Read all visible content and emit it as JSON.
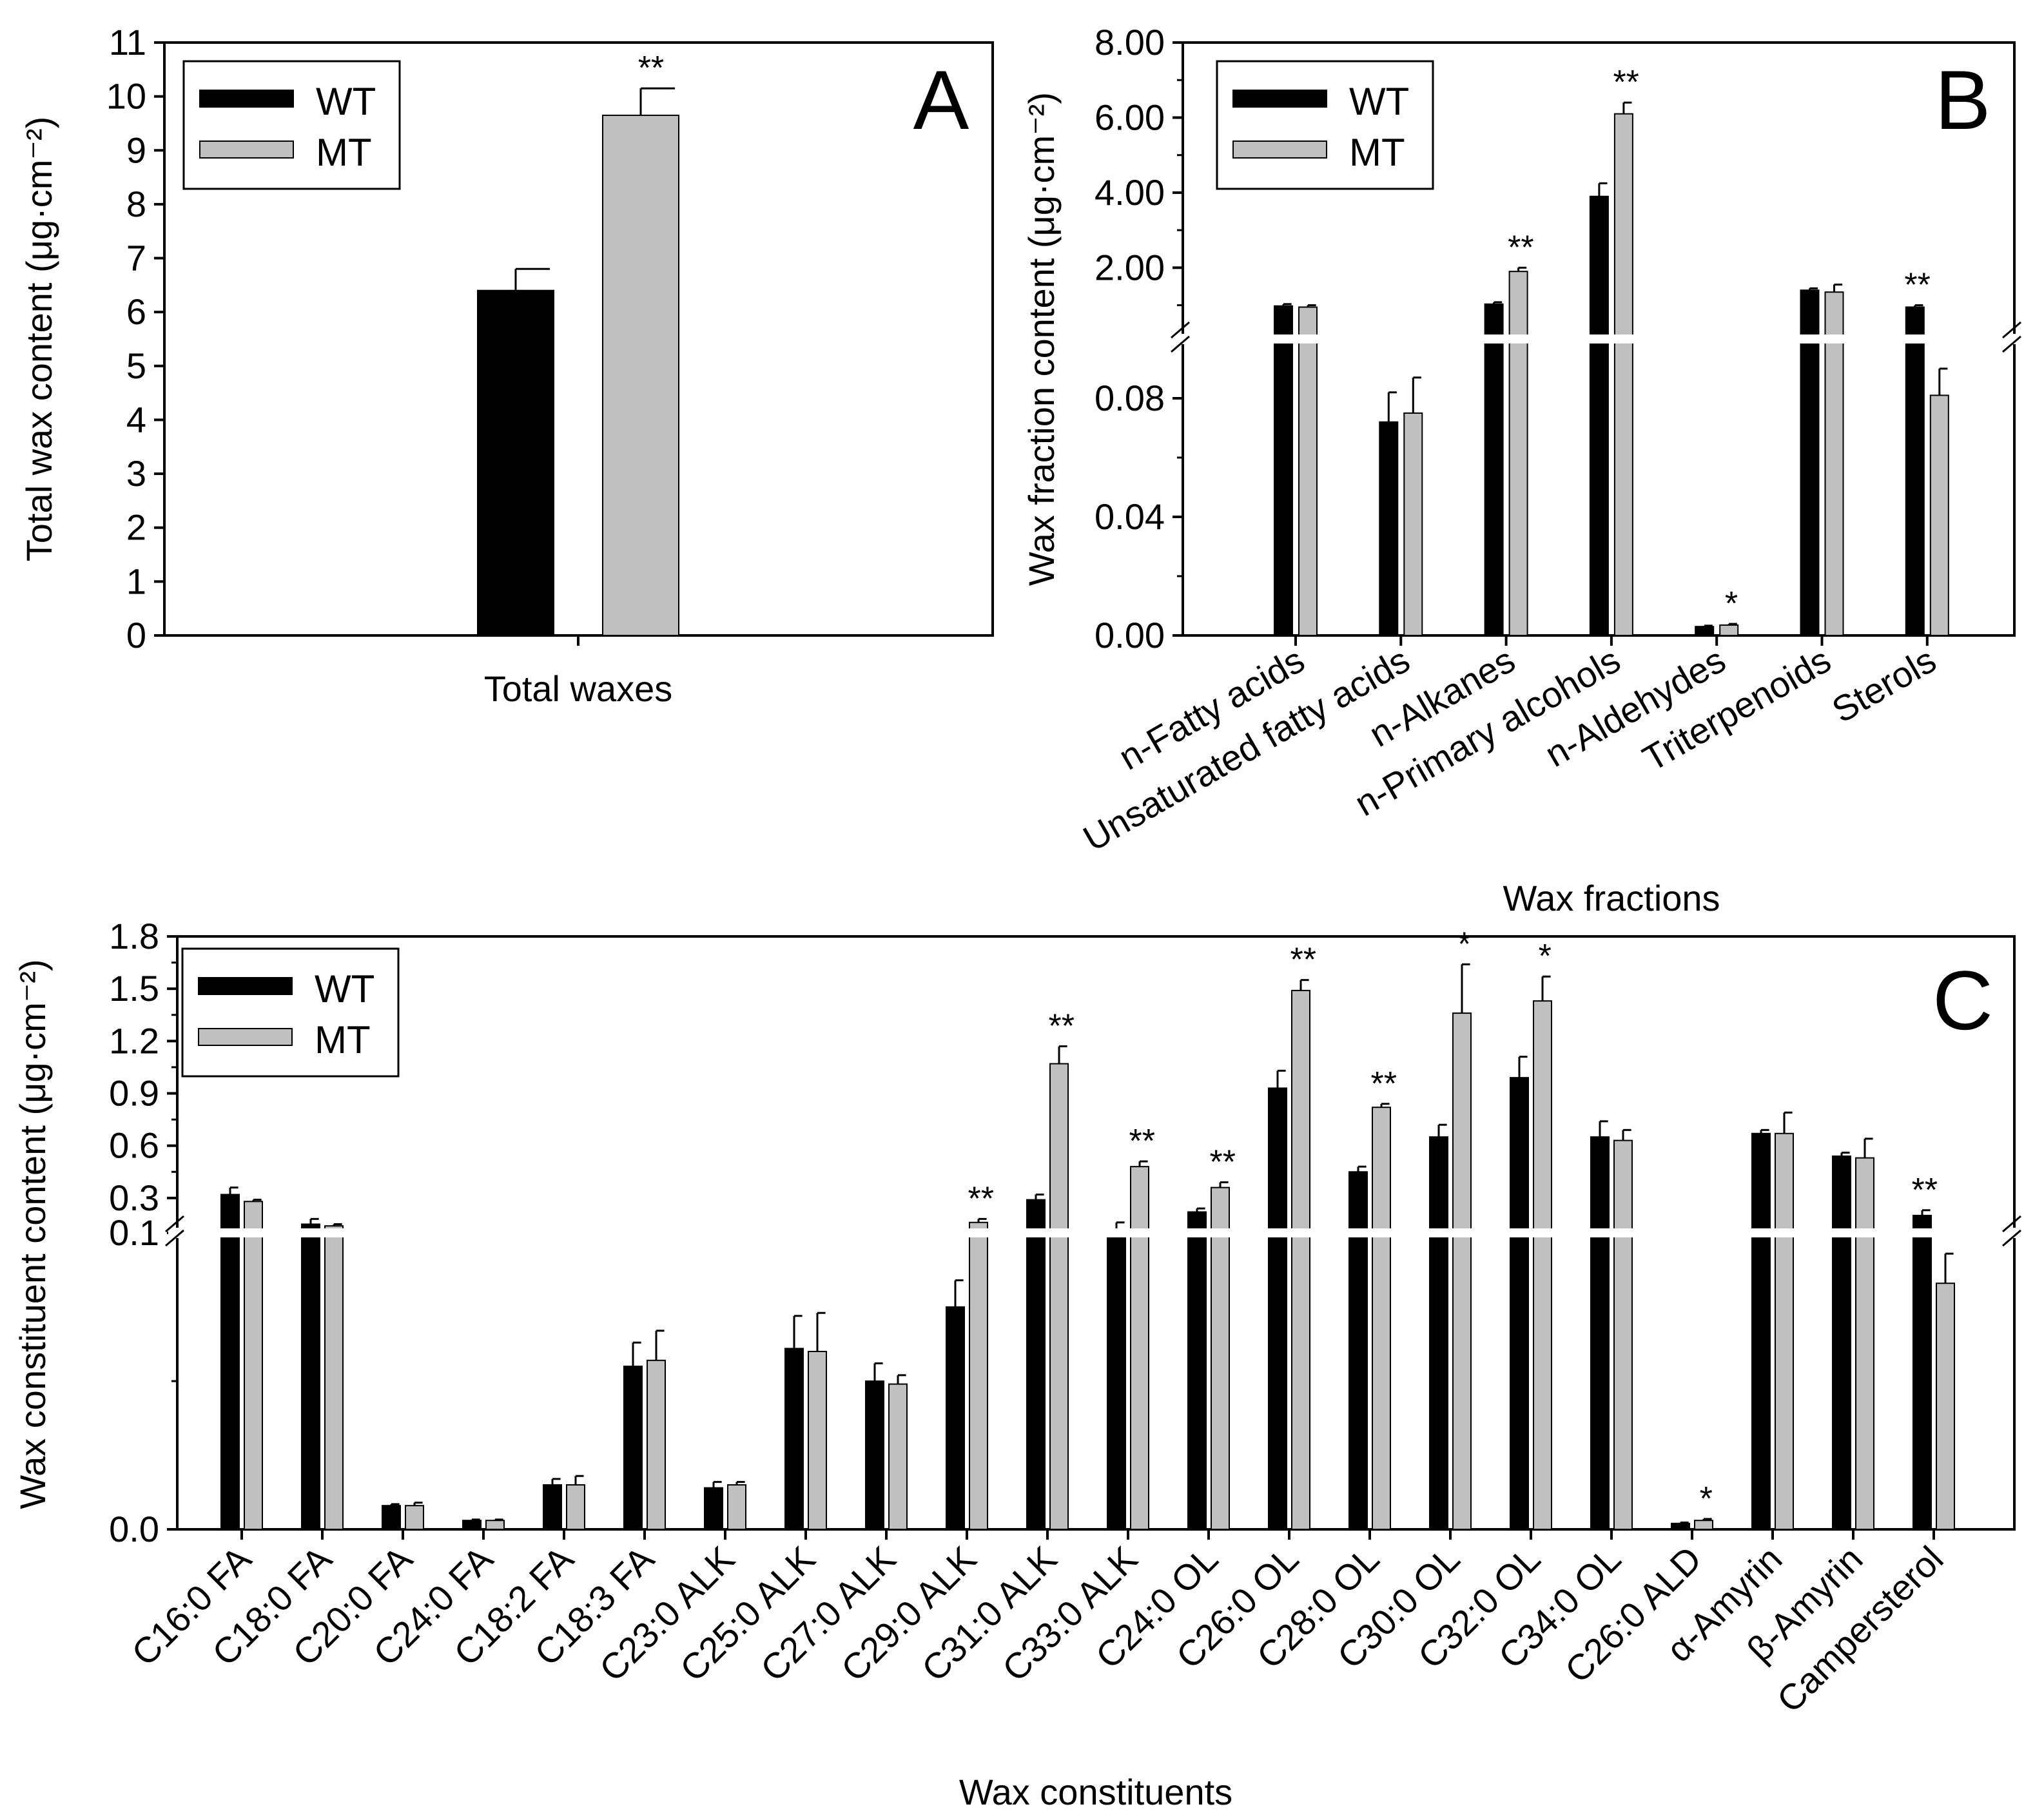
{
  "colors": {
    "wt": "#000000",
    "mt": "#c0c0c0",
    "axis": "#000000"
  },
  "chart_data": [
    {
      "id": "A",
      "type": "bar",
      "panel_label": "A",
      "ylabel": "Total wax content (μg·cm⁻²)",
      "xlabel": "",
      "ylim": [
        0,
        11
      ],
      "yticks": [
        "0",
        "1",
        "2",
        "3",
        "4",
        "5",
        "6",
        "7",
        "8",
        "9",
        "10",
        "11"
      ],
      "categories": [
        "Total waxes"
      ],
      "legend": {
        "position": "top-left",
        "entries": [
          "WT",
          "MT"
        ]
      },
      "series": [
        {
          "name": "WT",
          "values": [
            6.4
          ],
          "errors": [
            0.4
          ],
          "sig": [
            ""
          ]
        },
        {
          "name": "MT",
          "values": [
            9.65
          ],
          "errors": [
            0.5
          ],
          "sig": [
            "**"
          ]
        }
      ]
    },
    {
      "id": "B",
      "type": "bar",
      "panel_label": "B",
      "ylabel": "Wax fraction content (μg·cm⁻²)",
      "xlabel": "Wax fractions",
      "axis_break": {
        "lower": [
          0,
          0.1
        ],
        "upper": [
          0.1,
          8.0
        ]
      },
      "yticks_lower": [
        "0.00",
        "0.04",
        "0.08"
      ],
      "yticks_upper": [
        "2.00",
        "4.00",
        "6.00",
        "8.00"
      ],
      "categories": [
        "n-Fatty acids",
        "Unsaturated fatty acids",
        "n-Alkanes",
        "n-Primary alcohols",
        "n-Aldehydes",
        "Triterpenoids",
        "Sterols"
      ],
      "legend": {
        "position": "top-left",
        "entries": [
          "WT",
          "MT"
        ]
      },
      "series": [
        {
          "name": "WT",
          "values": [
            0.98,
            0.072,
            1.03,
            3.9,
            0.003,
            1.4,
            0.95
          ],
          "errors": [
            0.05,
            0.01,
            0.05,
            0.35,
            0.0003,
            0.05,
            0.05
          ],
          "sig": [
            "",
            "",
            "",
            "",
            "",
            "",
            "**"
          ]
        },
        {
          "name": "MT",
          "values": [
            0.95,
            0.075,
            1.9,
            6.1,
            0.0035,
            1.35,
            0.081
          ],
          "errors": [
            0.05,
            0.012,
            0.1,
            0.3,
            0.0004,
            0.2,
            0.009
          ],
          "sig": [
            "",
            "",
            "**",
            "**",
            "*",
            "",
            ""
          ]
        }
      ]
    },
    {
      "id": "C",
      "type": "bar",
      "panel_label": "C",
      "ylabel": "Wax constituent content (μg·cm⁻²)",
      "xlabel": "Wax constituents",
      "axis_break": {
        "lower": [
          0,
          0.1
        ],
        "upper": [
          0.1,
          1.8
        ]
      },
      "yticks_lower": [
        "0.0",
        "0.1"
      ],
      "yticks_upper": [
        "0.3",
        "0.6",
        "0.9",
        "1.2",
        "1.5",
        "1.8"
      ],
      "categories": [
        "C16:0 FA",
        "C18:0 FA",
        "C20:0 FA",
        "C24:0 FA",
        "C18:2 FA",
        "C18:3 FA",
        "C23:0 ALK",
        "C25:0 ALK",
        "C27:0 ALK",
        "C29:0 ALK",
        "C31:0 ALK",
        "C33:0 ALK",
        "C24:0 OL",
        "C26:0 OL",
        "C28:0 OL",
        "C30:0 OL",
        "C32:0 OL",
        "C34:0 OL",
        "C26:0 ALD",
        "α-Amyrin",
        "β-Amyrin",
        "Campersterol"
      ],
      "legend": {
        "position": "top-left",
        "entries": [
          "WT",
          "MT"
        ]
      },
      "series": [
        {
          "name": "WT",
          "values": [
            0.32,
            0.15,
            0.008,
            0.003,
            0.015,
            0.055,
            0.014,
            0.061,
            0.05,
            0.075,
            0.29,
            0.1,
            0.22,
            0.93,
            0.45,
            0.65,
            0.99,
            0.65,
            0.002,
            0.67,
            0.54,
            0.2
          ],
          "errors": [
            0.04,
            0.03,
            0.0005,
            0.0003,
            0.002,
            0.008,
            0.002,
            0.011,
            0.006,
            0.009,
            0.03,
            0.06,
            0.02,
            0.1,
            0.03,
            0.07,
            0.12,
            0.09,
            0.0003,
            0.02,
            0.02,
            0.03
          ],
          "sig": [
            "",
            "",
            "",
            "",
            "",
            "",
            "",
            "",
            "",
            "",
            "",
            "",
            "",
            "",
            "",
            "",
            "",
            "",
            "",
            "",
            "",
            "**"
          ]
        },
        {
          "name": "MT",
          "values": [
            0.28,
            0.14,
            0.008,
            0.003,
            0.015,
            0.057,
            0.015,
            0.06,
            0.049,
            0.16,
            1.07,
            0.48,
            0.36,
            1.49,
            0.82,
            1.36,
            1.43,
            0.63,
            0.003,
            0.67,
            0.53,
            0.083
          ],
          "errors": [
            0.01,
            0.01,
            0.001,
            0.0003,
            0.003,
            0.01,
            0.001,
            0.013,
            0.003,
            0.02,
            0.1,
            0.03,
            0.03,
            0.06,
            0.02,
            0.28,
            0.14,
            0.06,
            0.0005,
            0.12,
            0.11,
            0.01
          ],
          "sig": [
            "",
            "",
            "",
            "",
            "",
            "",
            "",
            "",
            "",
            "**",
            "**",
            "**",
            "**",
            "**",
            "**",
            "*",
            "*",
            "",
            "*",
            "",
            "",
            ""
          ]
        }
      ]
    }
  ]
}
